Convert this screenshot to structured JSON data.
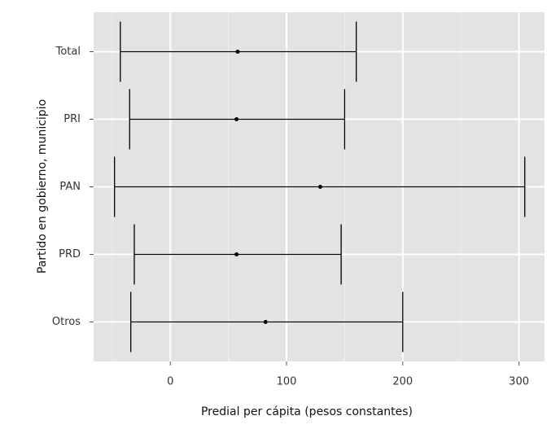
{
  "chart_data": {
    "type": "errorbar",
    "x_label": "Predial per cápita (pesos constantes)",
    "y_label": "Partido en gobierno, municipio",
    "categories": [
      "Total",
      "PRI",
      "PAN",
      "PRD",
      "Otros"
    ],
    "values": [
      58,
      57,
      129,
      57,
      82
    ],
    "lower": [
      -43,
      -35,
      -48,
      -31,
      -34
    ],
    "upper": [
      160,
      150,
      305,
      147,
      200
    ],
    "xlim": [
      -66,
      322
    ],
    "xticks": [
      0,
      100,
      200,
      300
    ],
    "minor_xticks": [
      -50,
      50,
      150,
      250
    ],
    "grid": true,
    "color": "#000000"
  }
}
